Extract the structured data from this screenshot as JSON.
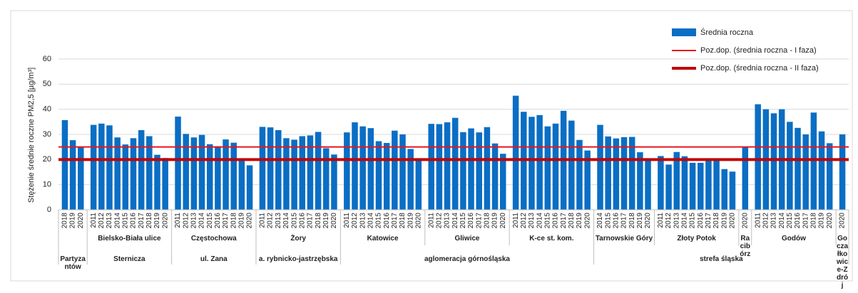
{
  "chart_data": {
    "type": "bar",
    "ylabel": "Stężenie średnie roczne PM2,5 [µg/m³]",
    "ylim": [
      0,
      60
    ],
    "yticks": [
      0,
      10,
      20,
      30,
      40,
      50,
      60
    ],
    "grid": true,
    "legend": "top-right",
    "series_name": "Średnia roczna",
    "color": "#0a6ec4",
    "lines": [
      {
        "name": "Poz.dop. (średnia roczna - I faza)",
        "value": 25,
        "color": "#e8141b"
      },
      {
        "name": "Poz.dop. (średnia roczna - II faza)",
        "value": 20,
        "color": "#c00000"
      }
    ],
    "regions": [
      {
        "name": "Partyzantów",
        "stations": [
          {
            "categories": [
              "2018",
              "2019",
              "2020"
            ],
            "values": [
              35.7,
              27.7,
              24.8
            ]
          }
        ]
      },
      {
        "name": "Sternicza",
        "stations": [
          {
            "name": "Bielsko-Biała ulice",
            "categories": [
              "2011",
              "2012",
              "2013",
              "2014",
              "2015",
              "2016",
              "2017",
              "2018",
              "2019",
              "2020"
            ],
            "values": [
              33.8,
              34.3,
              33.6,
              28.8,
              26.0,
              28.5,
              31.7,
              29.3,
              21.9,
              20.6
            ]
          }
        ]
      },
      {
        "name": "ul. Zana",
        "stations": [
          {
            "name": "Częstochowa",
            "categories": [
              "2011",
              "2012",
              "2013",
              "2014",
              "2015",
              "2016",
              "2017",
              "2018",
              "2019",
              "2020"
            ],
            "values": [
              37.1,
              30.2,
              28.8,
              29.8,
              26.1,
              25.3,
              28.0,
              26.7,
              20.0,
              17.7
            ]
          }
        ]
      },
      {
        "name": "a. rybnicko-jastrzębska",
        "stations": [
          {
            "name": "Żory",
            "categories": [
              "2011",
              "2012",
              "2013",
              "2014",
              "2015",
              "2016",
              "2017",
              "2018",
              "2019",
              "2020"
            ],
            "values": [
              33.0,
              32.8,
              31.7,
              28.5,
              27.9,
              29.3,
              29.6,
              31.0,
              24.5,
              22.0
            ]
          }
        ]
      },
      {
        "name": "aglomeracja górnośląska",
        "stations": [
          {
            "name": "Katowice",
            "categories": [
              "2011",
              "2012",
              "2013",
              "2014",
              "2015",
              "2016",
              "2017",
              "2018",
              "2019",
              "2020"
            ],
            "values": [
              30.8,
              34.8,
              33.2,
              32.5,
              27.3,
              26.6,
              31.5,
              30.0,
              24.2,
              20.3
            ]
          },
          {
            "name": "Gliwice",
            "categories": [
              "2011",
              "2012",
              "2013",
              "2014",
              "2015",
              "2016",
              "2017",
              "2018",
              "2019",
              "2020"
            ],
            "values": [
              34.2,
              34.1,
              34.8,
              36.6,
              30.9,
              32.4,
              30.8,
              32.9,
              26.4,
              22.3
            ]
          },
          {
            "name": "K-ce st. kom.",
            "categories": [
              "2011",
              "2012",
              "2013",
              "2014",
              "2015",
              "2016",
              "2017",
              "2018",
              "2019",
              "2020"
            ],
            "values": [
              45.4,
              39.0,
              37.0,
              37.7,
              33.2,
              34.3,
              39.4,
              35.5,
              27.8,
              23.6
            ]
          }
        ]
      },
      {
        "name": "strefa śląska",
        "stations": [
          {
            "name": "Tarnowskie Góry",
            "categories": [
              "2014",
              "2015",
              "2016",
              "2017",
              "2018",
              "2019",
              "2020"
            ],
            "values": [
              33.8,
              29.2,
              28.4,
              28.9,
              29.0,
              22.9,
              20.0
            ]
          },
          {
            "name": "Złoty Potok",
            "categories": [
              "2011",
              "2012",
              "2013",
              "2014",
              "2015",
              "2016",
              "2017",
              "2018",
              "2019",
              "2020"
            ],
            "values": [
              21.4,
              18.0,
              23.0,
              21.3,
              18.7,
              18.7,
              20.2,
              20.2,
              16.2,
              15.2
            ]
          },
          {
            "name": "Racibórz",
            "categories": [
              "2020"
            ],
            "values": [
              24.9
            ]
          },
          {
            "name": "Godów",
            "categories": [
              "2011",
              "2012",
              "2013",
              "2014",
              "2015",
              "2016",
              "2017",
              "2018",
              "2019",
              "2020"
            ],
            "values": [
              42.0,
              40.0,
              38.4,
              40.0,
              35.0,
              32.6,
              30.0,
              38.7,
              31.2,
              26.5
            ]
          },
          {
            "name": "Goczałkowice-Zdrój",
            "categories": [
              "2020"
            ],
            "values": [
              30.0
            ]
          }
        ]
      }
    ]
  }
}
